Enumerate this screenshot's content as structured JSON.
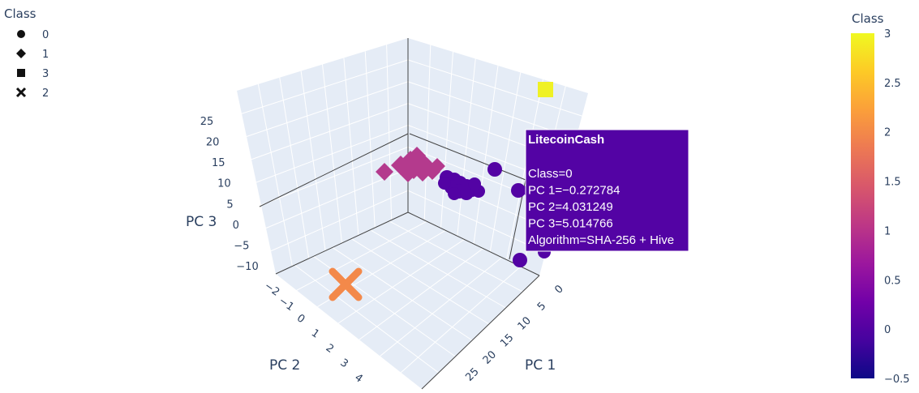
{
  "chart_data": {
    "type": "scatter3d",
    "axes": {
      "x": {
        "title": "PC 1",
        "ticks": [
          "0",
          "5",
          "10",
          "15",
          "20",
          "25"
        ]
      },
      "y": {
        "title": "PC 2",
        "ticks": [
          "−2",
          "−1",
          "0",
          "1",
          "2",
          "3",
          "4"
        ]
      },
      "z": {
        "title": "PC 3",
        "ticks": [
          "−10",
          "−5",
          "0",
          "5",
          "10",
          "15",
          "20",
          "25"
        ]
      }
    },
    "legend": {
      "title": "Class",
      "position": "top-left",
      "items": [
        {
          "label": "0",
          "symbol": "circle"
        },
        {
          "label": "1",
          "symbol": "diamond"
        },
        {
          "label": "3",
          "symbol": "square"
        },
        {
          "label": "2",
          "symbol": "x"
        }
      ]
    },
    "colorbar": {
      "title": "Class",
      "range": [
        -0.5,
        3
      ],
      "ticks": [
        "3",
        "2.5",
        "2",
        "1.5",
        "1",
        "0.5",
        "0",
        "−0.5"
      ],
      "colors": [
        "#0d0887",
        "#46039f",
        "#7201a8",
        "#9c179e",
        "#bd3786",
        "#d8576b",
        "#ed7953",
        "#fb9f3a",
        "#fdca26",
        "#f0f921"
      ]
    },
    "series_colors": {
      "0": "#5303a4",
      "1": "#b43a8d",
      "2": "#f3894a",
      "3": "#eff125"
    },
    "hover": {
      "title": "LitecoinCash",
      "lines": [
        "Class=0",
        "PC 1=−0.272784",
        "PC 2=4.031249",
        "PC 3=5.014766",
        "Algorithm=SHA-256 + Hive"
      ]
    }
  }
}
